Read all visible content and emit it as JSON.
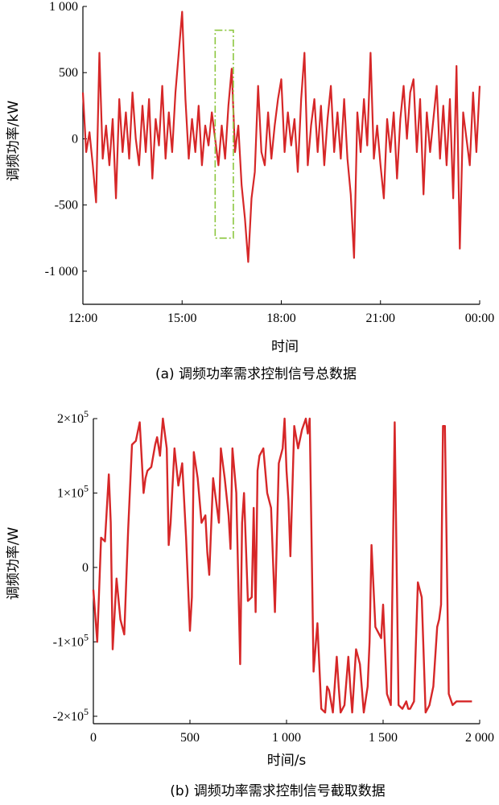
{
  "colors": {
    "line": "#d62728",
    "highlight": "#8cc63f",
    "axis": "#000000"
  },
  "chart_data": [
    {
      "type": "line",
      "caption": "(a) 调频功率需求控制信号总数据",
      "xlabel": "时间",
      "ylabel": "调频功率/kW",
      "x_range_hours": [
        12,
        24
      ],
      "xticks": [
        "12:00",
        "15:00",
        "18:00",
        "21:00",
        "00:00"
      ],
      "yticks": [
        "-1 000",
        "-500",
        "0",
        "500",
        "1 000"
      ],
      "ylim": [
        -1250,
        1000
      ],
      "highlight_box": {
        "x": [
          16.0,
          16.55
        ],
        "y": [
          -750,
          820
        ]
      },
      "series": [
        {
          "x": [
            12.0,
            12.1,
            12.2,
            12.3,
            12.4,
            12.5,
            12.6,
            12.7,
            12.8,
            12.9,
            13.0,
            13.1,
            13.2,
            13.3,
            13.4,
            13.5,
            13.6,
            13.7,
            13.8,
            13.9,
            14.0,
            14.1,
            14.2,
            14.3,
            14.4,
            14.5,
            14.6,
            14.7,
            14.8,
            14.9,
            15.0,
            15.1,
            15.2,
            15.3,
            15.4,
            15.5,
            15.6,
            15.7,
            15.8,
            15.9,
            16.0,
            16.1,
            16.2,
            16.3,
            16.4,
            16.5,
            16.6,
            16.7,
            16.8,
            16.9,
            17.0,
            17.1,
            17.2,
            17.3,
            17.4,
            17.5,
            17.6,
            17.7,
            17.8,
            17.9,
            18.0,
            18.1,
            18.2,
            18.3,
            18.4,
            18.5,
            18.6,
            18.7,
            18.8,
            18.9,
            19.0,
            19.1,
            19.2,
            19.3,
            19.4,
            19.5,
            19.6,
            19.7,
            19.8,
            19.9,
            20.0,
            20.1,
            20.2,
            20.3,
            20.4,
            20.5,
            20.6,
            20.7,
            20.8,
            20.9,
            21.0,
            21.1,
            21.2,
            21.3,
            21.4,
            21.5,
            21.6,
            21.7,
            21.8,
            21.9,
            22.0,
            22.1,
            22.2,
            22.3,
            22.4,
            22.5,
            22.6,
            22.7,
            22.8,
            22.9,
            23.0,
            23.1,
            23.2,
            23.3,
            23.4,
            23.5,
            23.6,
            23.7,
            23.8,
            23.9,
            24.0
          ],
          "y": [
            350,
            -100,
            50,
            -200,
            -480,
            650,
            -150,
            100,
            -200,
            150,
            -450,
            300,
            -100,
            200,
            -150,
            350,
            0,
            -200,
            250,
            -100,
            300,
            -300,
            150,
            -50,
            400,
            -150,
            200,
            -100,
            350,
            650,
            960,
            300,
            -150,
            150,
            -100,
            250,
            -200,
            100,
            -50,
            200,
            0,
            -200,
            100,
            -150,
            250,
            530,
            -100,
            100,
            -350,
            -600,
            -930,
            -450,
            -250,
            400,
            -100,
            -200,
            200,
            -150,
            100,
            300,
            450,
            -100,
            200,
            -50,
            150,
            -250,
            300,
            650,
            -200,
            100,
            300,
            -100,
            250,
            -200,
            150,
            400,
            -100,
            200,
            -150,
            300,
            -150,
            -420,
            -900,
            200,
            -100,
            300,
            -50,
            650,
            -150,
            100,
            -200,
            -450,
            150,
            -100,
            200,
            -300,
            150,
            400,
            0,
            350,
            450,
            -100,
            300,
            -420,
            200,
            -100,
            150,
            400,
            -150,
            250,
            -200,
            300,
            -450,
            550,
            -830,
            200,
            0,
            -200,
            350,
            -100,
            400
          ]
        }
      ]
    },
    {
      "type": "line",
      "caption": "(b) 调频功率需求控制信号截取数据",
      "xlabel": "时间/s",
      "ylabel": "调频功率/W",
      "xlim": [
        0,
        2000
      ],
      "xticks": [
        "0",
        "500",
        "1 000",
        "1 500",
        "2 000"
      ],
      "yticks": [
        {
          "v": 200000,
          "m": "2×10",
          "e": "5"
        },
        {
          "v": 100000,
          "m": "1×10",
          "e": "5"
        },
        {
          "v": 0,
          "m": "0",
          "e": ""
        },
        {
          "v": -100000,
          "m": "-1×10",
          "e": "5"
        },
        {
          "v": -200000,
          "m": "-2×10",
          "e": "5"
        }
      ],
      "ylim": [
        -200000,
        200000
      ],
      "series": [
        {
          "x": [
            0,
            20,
            40,
            60,
            80,
            90,
            100,
            120,
            140,
            160,
            180,
            200,
            220,
            240,
            260,
            270,
            280,
            300,
            320,
            330,
            345,
            360,
            380,
            390,
            400,
            420,
            440,
            460,
            470,
            480,
            500,
            510,
            520,
            540,
            560,
            580,
            590,
            600,
            620,
            640,
            650,
            660,
            680,
            700,
            710,
            720,
            740,
            760,
            770,
            780,
            800,
            820,
            830,
            840,
            850,
            860,
            880,
            900,
            920,
            940,
            960,
            980,
            990,
            1000,
            1010,
            1020,
            1040,
            1060,
            1080,
            1100,
            1110,
            1120,
            1140,
            1160,
            1180,
            1200,
            1210,
            1220,
            1240,
            1260,
            1270,
            1280,
            1300,
            1320,
            1330,
            1340,
            1360,
            1380,
            1400,
            1420,
            1430,
            1440,
            1460,
            1480,
            1490,
            1500,
            1520,
            1540,
            1560,
            1580,
            1600,
            1620,
            1630,
            1640,
            1660,
            1680,
            1700,
            1720,
            1740,
            1760,
            1780,
            1790,
            1800,
            1810,
            1820,
            1840,
            1860,
            1880,
            1900,
            1920,
            1940,
            1960
          ],
          "y": [
            -30000,
            -100000,
            40000,
            35000,
            125000,
            60000,
            -110000,
            -15000,
            -70000,
            -90000,
            50000,
            165000,
            170000,
            195000,
            100000,
            120000,
            130000,
            135000,
            165000,
            175000,
            150000,
            200000,
            160000,
            30000,
            60000,
            160000,
            110000,
            140000,
            90000,
            40000,
            -85000,
            -40000,
            155000,
            120000,
            60000,
            70000,
            20000,
            -10000,
            120000,
            80000,
            60000,
            160000,
            120000,
            70000,
            25000,
            160000,
            100000,
            -130000,
            60000,
            100000,
            -45000,
            -40000,
            80000,
            -60000,
            130000,
            150000,
            160000,
            100000,
            80000,
            -60000,
            140000,
            160000,
            200000,
            130000,
            90000,
            15000,
            190000,
            160000,
            185000,
            200000,
            180000,
            200000,
            -140000,
            -75000,
            -190000,
            -195000,
            -160000,
            -165000,
            -195000,
            -120000,
            -160000,
            -195000,
            -185000,
            -120000,
            -160000,
            -195000,
            -110000,
            -130000,
            -195000,
            -160000,
            -100000,
            30000,
            -80000,
            -90000,
            -95000,
            -50000,
            -170000,
            -185000,
            195000,
            -185000,
            -190000,
            -180000,
            -190000,
            -190000,
            -180000,
            -20000,
            -40000,
            -195000,
            -185000,
            -160000,
            -80000,
            -70000,
            -50000,
            190000,
            190000,
            -170000,
            -185000,
            -180000,
            -180000,
            -180000,
            -180000,
            -180000
          ]
        }
      ]
    }
  ]
}
